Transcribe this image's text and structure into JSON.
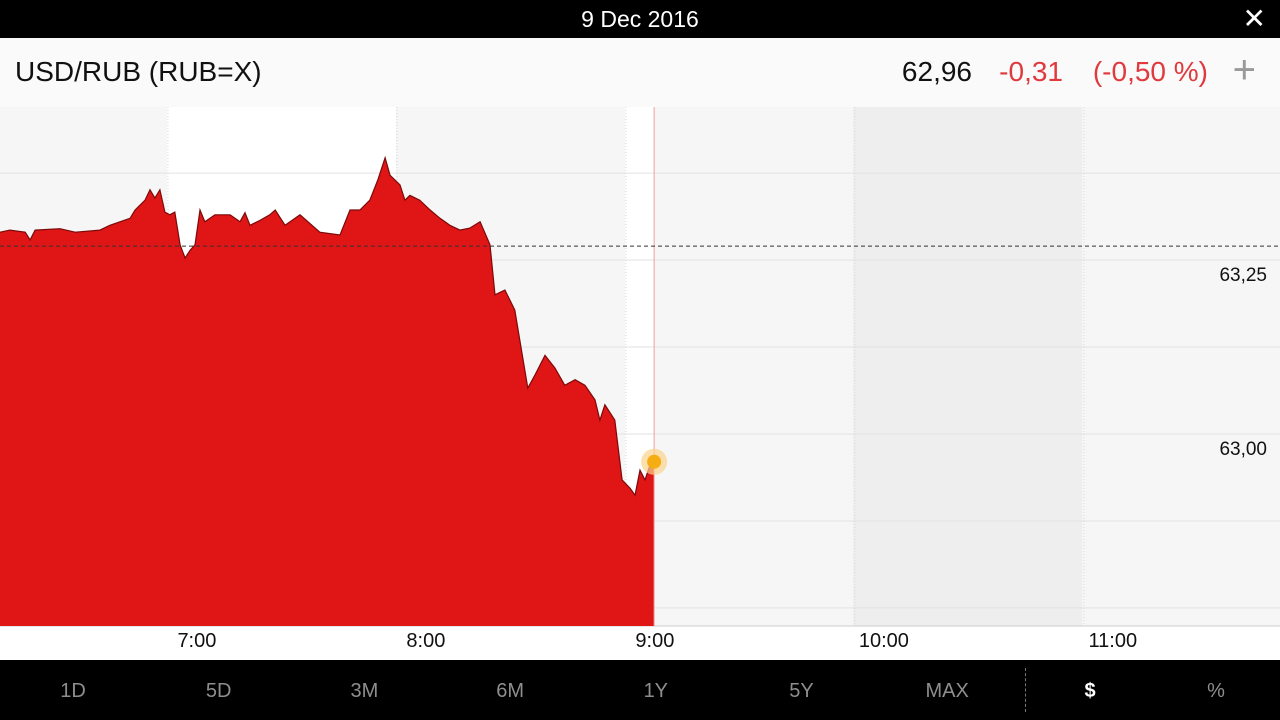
{
  "header": {
    "title": "9 Dec 2016"
  },
  "quote": {
    "symbol": "USD/RUB (RUB=X)",
    "price": "62,96",
    "change": "-0,31",
    "change_percent": "(-0,50 %)"
  },
  "chart_data": {
    "type": "area",
    "color": "#e01515",
    "x": [
      376.0,
      378.6,
      382.6,
      383.9,
      385.2,
      391.7,
      395.7,
      402.2,
      404.8,
      410.1,
      411.4,
      414.0,
      415.3,
      416.6,
      417.9,
      419.2,
      420.5,
      421.8,
      423.2,
      424.5,
      425.8,
      427.1,
      428.4,
      429.7,
      432.3,
      436.3,
      438.9,
      440.2,
      441.5,
      444.1,
      446.7,
      448.1,
      450.7,
      454.6,
      459.8,
      465.1,
      467.7,
      470.3,
      472.9,
      475.0,
      476.9,
      478.2,
      480.8,
      482.1,
      483.4,
      486.0,
      488.7,
      491.3,
      493.9,
      496.5,
      499.1,
      501.8,
      504.4,
      505.7,
      508.3,
      510.9,
      512.2,
      514.3,
      516.2,
      518.8,
      521.4,
      524.0,
      526.7,
      529.3,
      531.9,
      533.2,
      534.5,
      537.1,
      539.0,
      541.1,
      542.4,
      543.7,
      545.0,
      546.3,
      547.4
    ],
    "values": [
      63.29,
      63.293,
      63.29,
      63.279,
      63.293,
      63.295,
      63.29,
      63.293,
      63.3,
      63.31,
      63.322,
      63.336,
      63.351,
      63.339,
      63.351,
      63.319,
      63.315,
      63.319,
      63.272,
      63.253,
      63.264,
      63.272,
      63.322,
      63.305,
      63.315,
      63.315,
      63.305,
      63.318,
      63.3,
      63.307,
      63.315,
      63.322,
      63.3,
      63.315,
      63.29,
      63.286,
      63.322,
      63.322,
      63.336,
      63.365,
      63.397,
      63.372,
      63.358,
      63.336,
      63.343,
      63.336,
      63.322,
      63.31,
      63.3,
      63.293,
      63.296,
      63.305,
      63.272,
      63.2,
      63.207,
      63.178,
      63.135,
      63.066,
      63.085,
      63.113,
      63.095,
      63.07,
      63.078,
      63.07,
      63.049,
      63.02,
      63.042,
      63.02,
      62.934,
      62.922,
      62.912,
      62.948,
      62.934,
      62.955,
      62.96
    ],
    "xlim": [
      376,
      711.4
    ],
    "xticks": [
      {
        "value": 420,
        "label": "7:00"
      },
      {
        "value": 480,
        "label": "8:00"
      },
      {
        "value": 540,
        "label": "9:00"
      },
      {
        "value": 600,
        "label": "10:00"
      },
      {
        "value": 660,
        "label": "11:00"
      }
    ],
    "ylim": [
      62.724,
      63.47
    ],
    "yticks": [
      {
        "value": 63.25,
        "label": "63,25"
      },
      {
        "value": 63.0,
        "label": "63,00"
      }
    ],
    "grid_lines": [
      62.75,
      62.875,
      63.0,
      63.125,
      63.25,
      63.375
    ],
    "previous_close": 63.27
  },
  "ranges": [
    "1D",
    "5D",
    "3M",
    "6M",
    "1Y",
    "5Y",
    "MAX"
  ],
  "units": [
    "$",
    "%"
  ]
}
